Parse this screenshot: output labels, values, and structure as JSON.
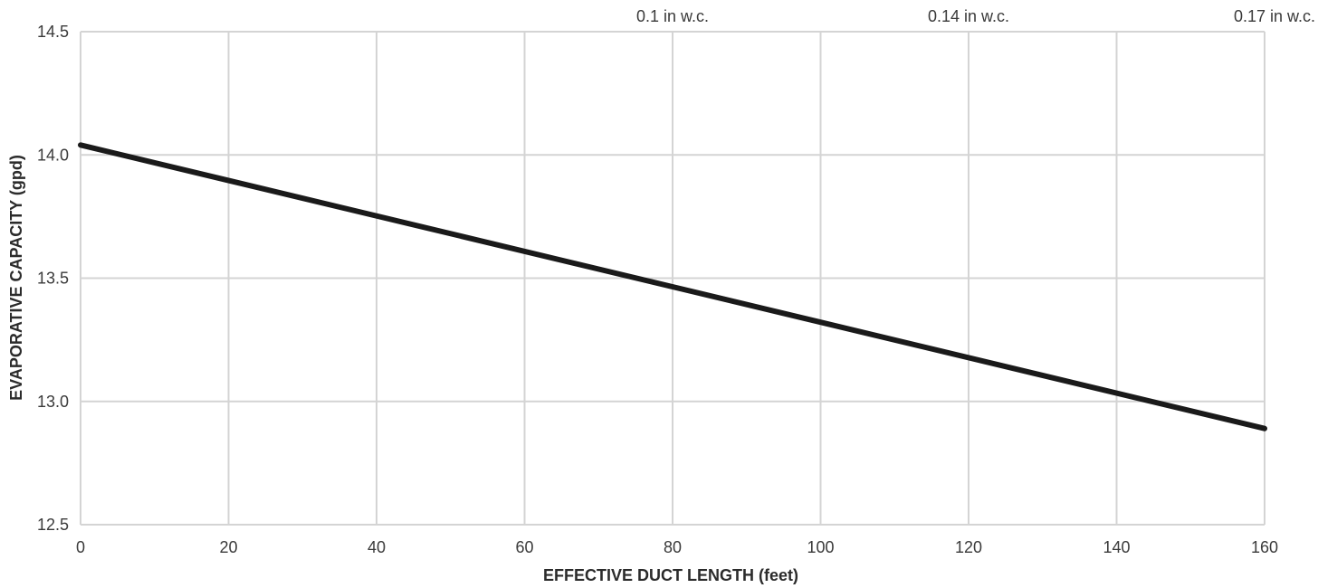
{
  "chart_data": {
    "type": "line",
    "title": "",
    "xlabel": "EFFECTIVE DUCT LENGTH (feet)",
    "ylabel": "EVAPORATIVE CAPACITY (gpd)",
    "xlim": [
      0,
      160
    ],
    "ylim": [
      12.5,
      14.5
    ],
    "x_ticks": [
      "0",
      "20",
      "40",
      "60",
      "80",
      "100",
      "120",
      "140",
      "160"
    ],
    "y_ticks": [
      "12.5",
      "13.0",
      "13.5",
      "14.0",
      "14.5"
    ],
    "grid": true,
    "series": [
      {
        "x": [
          0,
          160
        ],
        "y": [
          14.04,
          12.89
        ]
      }
    ],
    "annotations": [
      {
        "x": 80,
        "text": "0.1 in w.c."
      },
      {
        "x": 120,
        "text": "0.14 in w.c."
      },
      {
        "x": 160,
        "text": "0.17 in w.c."
      }
    ],
    "line_color": "#1a1a1a",
    "grid_color": "#d4d4d4"
  }
}
